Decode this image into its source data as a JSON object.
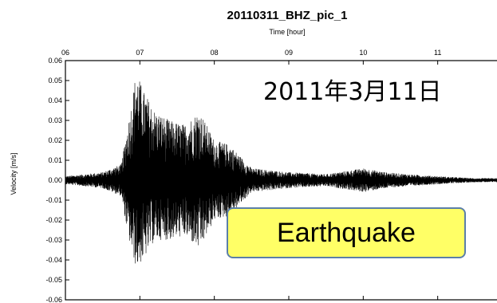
{
  "chart_data": {
    "type": "line",
    "title": "20110311_BHZ_pic_1",
    "xlabel": "Time [hour]",
    "ylabel": "Velocity [m/s]",
    "x_ticks": [
      "06",
      "07",
      "08",
      "09",
      "10",
      "11"
    ],
    "x_tick_values": [
      6,
      7,
      8,
      9,
      10,
      11
    ],
    "xlim": [
      6,
      12
    ],
    "y_ticks": [
      "0.06",
      "0.05",
      "0.04",
      "0.03",
      "0.02",
      "0.01",
      "0.00",
      "-0.01",
      "-0.02",
      "-0.03",
      "-0.04",
      "-0.05",
      "-0.06"
    ],
    "y_tick_values": [
      0.06,
      0.05,
      0.04,
      0.03,
      0.02,
      0.01,
      0.0,
      -0.01,
      -0.02,
      -0.03,
      -0.04,
      -0.05,
      -0.06
    ],
    "ylim": [
      -0.06,
      0.06
    ],
    "series": [
      {
        "color": "#000000",
        "envelope": {
          "x": [
            6.0,
            6.5,
            6.75,
            6.85,
            6.95,
            7.05,
            7.2,
            7.4,
            7.6,
            7.8,
            8.0,
            8.2,
            8.5,
            9.0,
            9.5,
            10.0,
            10.3,
            10.6,
            11.0,
            11.5,
            12.0
          ],
          "upper": [
            0.002,
            0.004,
            0.008,
            0.03,
            0.055,
            0.045,
            0.035,
            0.03,
            0.028,
            0.035,
            0.02,
            0.018,
            0.006,
            0.004,
            0.003,
            0.006,
            0.004,
            0.003,
            0.002,
            0.001,
            0.001
          ],
          "lower": [
            -0.002,
            -0.004,
            -0.008,
            -0.03,
            -0.044,
            -0.04,
            -0.03,
            -0.03,
            -0.028,
            -0.035,
            -0.02,
            -0.018,
            -0.006,
            -0.004,
            -0.003,
            -0.006,
            -0.004,
            -0.003,
            -0.002,
            -0.001,
            -0.001
          ]
        }
      }
    ],
    "grid": false,
    "annotations": [
      "2011年3月11日",
      "Earthquake"
    ]
  }
}
